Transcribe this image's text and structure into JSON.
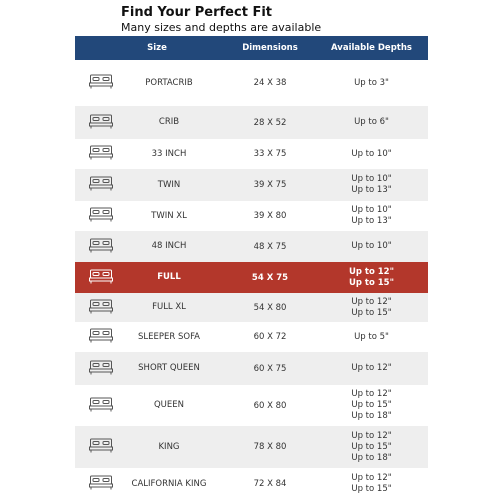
{
  "header": {
    "title": "Find Your Perfect Fit",
    "subtitle": "Many sizes and depths are available"
  },
  "table": {
    "header_color": "#22487a",
    "columns": [
      "Size",
      "Dimensions",
      "Available Depths"
    ],
    "rows": [
      {
        "size": "PORTACRIB",
        "dimensions": "24 X 38",
        "depths": [
          "Up to 3\""
        ]
      },
      {
        "size": "CRIB",
        "dimensions": "28 X 52",
        "depths": [
          "Up to 6\""
        ]
      },
      {
        "size": "33 INCH",
        "dimensions": "33 X 75",
        "depths": [
          "Up to 10\""
        ]
      },
      {
        "size": "TWIN",
        "dimensions": "39 X 75",
        "depths": [
          "Up to 10\"",
          "Up to 13\""
        ]
      },
      {
        "size": "TWIN XL",
        "dimensions": "39 X 80",
        "depths": [
          "Up to 10\"",
          "Up to 13\""
        ]
      },
      {
        "size": "48 INCH",
        "dimensions": "48 X 75",
        "depths": [
          "Up to 10\""
        ]
      },
      {
        "size": "FULL",
        "dimensions": "54 X 75",
        "depths": [
          "Up to 12\"",
          "Up to 15\""
        ],
        "highlight_color": "#b3372b"
      },
      {
        "size": "FULL XL",
        "dimensions": "54 X 80",
        "depths": [
          "Up to 12\"",
          "Up to 15\""
        ]
      },
      {
        "size": "SLEEPER SOFA",
        "dimensions": "60 X 72",
        "depths": [
          "Up to 5\""
        ]
      },
      {
        "size": "SHORT QUEEN",
        "dimensions": "60 X 75",
        "depths": [
          "Up to 12\""
        ]
      },
      {
        "size": "QUEEN",
        "dimensions": "60 X 80",
        "depths": [
          "Up to 12\"",
          "Up to 15\"",
          "Up to 18\""
        ]
      },
      {
        "size": "KING",
        "dimensions": "78 X 80",
        "depths": [
          "Up to 12\"",
          "Up to 15\"",
          "Up to 18\""
        ]
      },
      {
        "size": "CALIFORNIA KING",
        "dimensions": "72 X 84",
        "depths": [
          "Up to 12\"",
          "Up to 15\""
        ]
      }
    ]
  }
}
